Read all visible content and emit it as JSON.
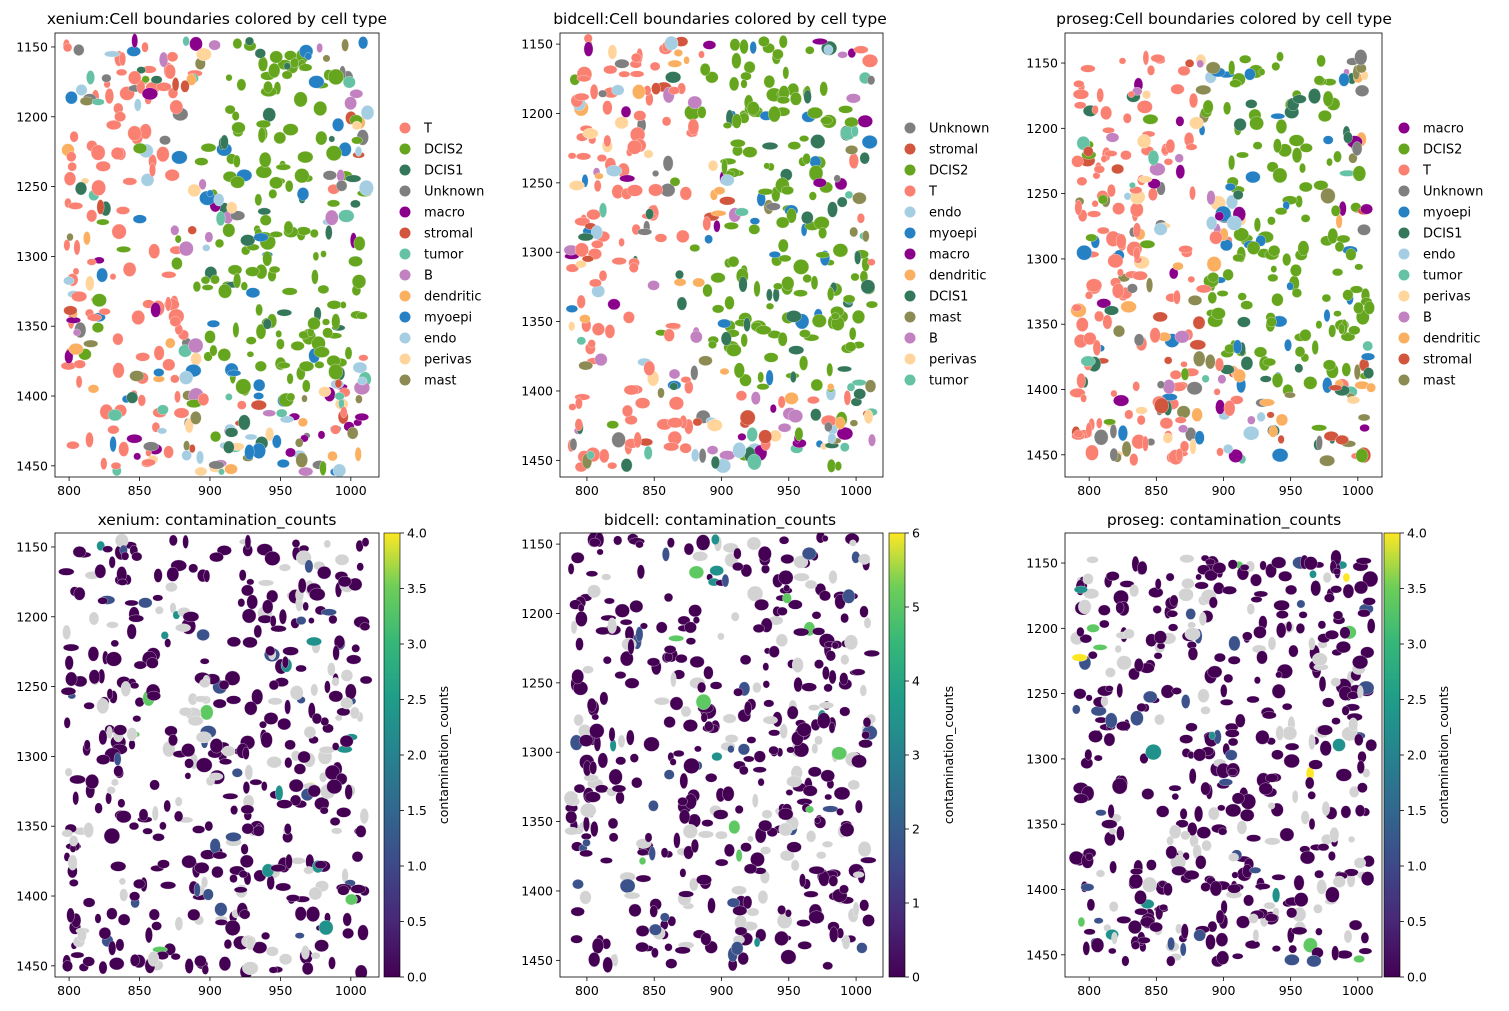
{
  "chart_data": [
    {
      "type": "scatter",
      "title": "xenium:Cell boundaries colored by cell type",
      "xlim": [
        790,
        1020
      ],
      "ylim": [
        1458,
        1140
      ],
      "xticks": [
        800,
        850,
        900,
        950,
        1000
      ],
      "yticks": [
        1150,
        1200,
        1250,
        1300,
        1350,
        1400,
        1450
      ],
      "legend_placement": "right",
      "legend": [
        {
          "label": "T",
          "color": "#fa8072"
        },
        {
          "label": "DCIS2",
          "color": "#66a61e"
        },
        {
          "label": "DCIS1",
          "color": "#35775a"
        },
        {
          "label": "Unknown",
          "color": "#7f7f7f"
        },
        {
          "label": "macro",
          "color": "#8b008b"
        },
        {
          "label": "stromal",
          "color": "#d2563e"
        },
        {
          "label": "tumor",
          "color": "#66c2a5"
        },
        {
          "label": "B",
          "color": "#c281c0"
        },
        {
          "label": "dendritic",
          "color": "#fbb061"
        },
        {
          "label": "myoepi",
          "color": "#2581c4"
        },
        {
          "label": "endo",
          "color": "#a6cee3"
        },
        {
          "label": "perivas",
          "color": "#ffd59c"
        },
        {
          "label": "mast",
          "color": "#8d8b54"
        }
      ]
    },
    {
      "type": "scatter",
      "title": "bidcell:Cell boundaries colored by cell type",
      "xlim": [
        780,
        1020
      ],
      "ylim": [
        1462,
        1142
      ],
      "xticks": [
        800,
        850,
        900,
        950,
        1000
      ],
      "yticks": [
        1150,
        1200,
        1250,
        1300,
        1350,
        1400,
        1450
      ],
      "legend_placement": "right",
      "legend": [
        {
          "label": "Unknown",
          "color": "#7f7f7f"
        },
        {
          "label": "stromal",
          "color": "#d2563e"
        },
        {
          "label": "DCIS2",
          "color": "#66a61e"
        },
        {
          "label": "T",
          "color": "#fa8072"
        },
        {
          "label": "endo",
          "color": "#a6cee3"
        },
        {
          "label": "myoepi",
          "color": "#2581c4"
        },
        {
          "label": "macro",
          "color": "#8b008b"
        },
        {
          "label": "dendritic",
          "color": "#fbb061"
        },
        {
          "label": "DCIS1",
          "color": "#35775a"
        },
        {
          "label": "mast",
          "color": "#8d8b54"
        },
        {
          "label": "B",
          "color": "#c281c0"
        },
        {
          "label": "perivas",
          "color": "#ffd59c"
        },
        {
          "label": "tumor",
          "color": "#66c2a5"
        }
      ]
    },
    {
      "type": "scatter",
      "title": "proseg:Cell boundaries colored by cell type",
      "xlim": [
        782,
        1018
      ],
      "ylim": [
        1467,
        1127
      ],
      "xticks": [
        800,
        850,
        900,
        950,
        1000
      ],
      "yticks": [
        1150,
        1200,
        1250,
        1300,
        1350,
        1400,
        1450
      ],
      "legend_placement": "right",
      "legend": [
        {
          "label": "macro",
          "color": "#8b008b"
        },
        {
          "label": "DCIS2",
          "color": "#66a61e"
        },
        {
          "label": "T",
          "color": "#fa8072"
        },
        {
          "label": "Unknown",
          "color": "#7f7f7f"
        },
        {
          "label": "myoepi",
          "color": "#2581c4"
        },
        {
          "label": "DCIS1",
          "color": "#35775a"
        },
        {
          "label": "endo",
          "color": "#a6cee3"
        },
        {
          "label": "tumor",
          "color": "#66c2a5"
        },
        {
          "label": "perivas",
          "color": "#ffd59c"
        },
        {
          "label": "B",
          "color": "#c281c0"
        },
        {
          "label": "dendritic",
          "color": "#fbb061"
        },
        {
          "label": "stromal",
          "color": "#d2563e"
        },
        {
          "label": "mast",
          "color": "#8d8b54"
        }
      ]
    },
    {
      "type": "heatmap",
      "title": "xenium: contamination_counts",
      "xlim": [
        790,
        1020
      ],
      "ylim": [
        1458,
        1140
      ],
      "xticks": [
        800,
        850,
        900,
        950,
        1000
      ],
      "yticks": [
        1150,
        1200,
        1250,
        1300,
        1350,
        1400,
        1450
      ],
      "colorbar_label": "contamination_counts",
      "colorbar_range": [
        0,
        4
      ],
      "colorbar_ticks": [
        "0.0",
        "0.5",
        "1.0",
        "1.5",
        "2.0",
        "2.5",
        "3.0",
        "3.5",
        "4.0"
      ]
    },
    {
      "type": "heatmap",
      "title": "bidcell: contamination_counts",
      "xlim": [
        780,
        1020
      ],
      "ylim": [
        1462,
        1142
      ],
      "xticks": [
        800,
        850,
        900,
        950,
        1000
      ],
      "yticks": [
        1150,
        1200,
        1250,
        1300,
        1350,
        1400,
        1450
      ],
      "colorbar_label": "contamination_counts",
      "colorbar_range": [
        0,
        6
      ],
      "colorbar_ticks": [
        "0",
        "1",
        "2",
        "3",
        "4",
        "5",
        "6"
      ]
    },
    {
      "type": "heatmap",
      "title": "proseg: contamination_counts",
      "xlim": [
        782,
        1018
      ],
      "ylim": [
        1467,
        1127
      ],
      "xticks": [
        800,
        850,
        900,
        950,
        1000
      ],
      "yticks": [
        1150,
        1200,
        1250,
        1300,
        1350,
        1400,
        1450
      ],
      "colorbar_label": "contamination_counts",
      "colorbar_range": [
        0,
        4
      ],
      "colorbar_ticks": [
        "0.0",
        "0.5",
        "1.0",
        "1.5",
        "2.0",
        "2.5",
        "3.0",
        "3.5",
        "4.0"
      ]
    }
  ],
  "colors": {
    "background_cells": "#d3d3d3",
    "viridis": [
      "#440154",
      "#3b528b",
      "#21918c",
      "#5ec962",
      "#fde725"
    ]
  }
}
